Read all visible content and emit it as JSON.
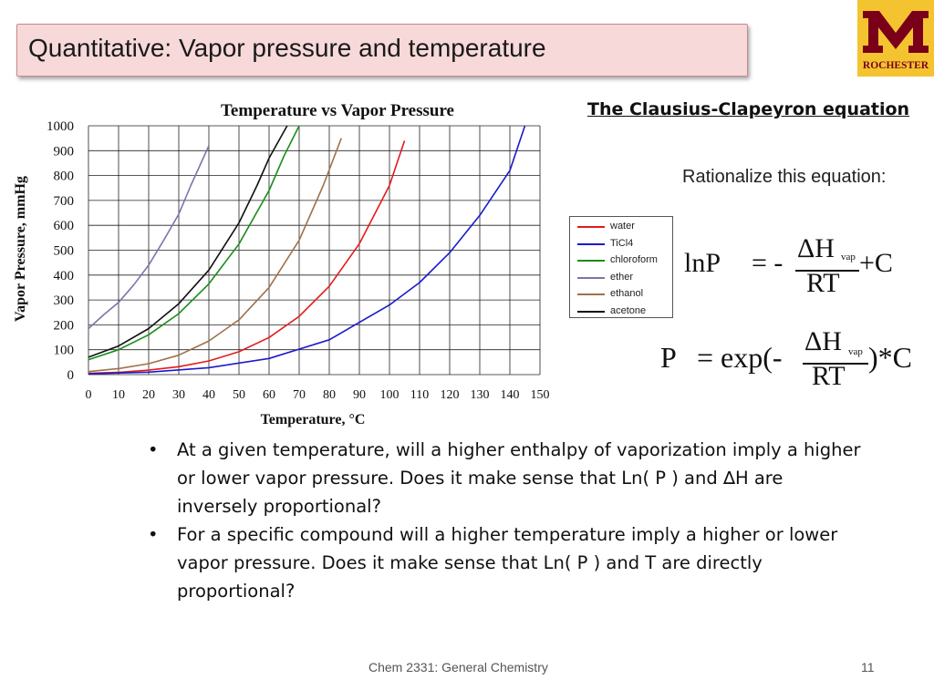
{
  "slide": {
    "title": "Quantitative: Vapor pressure and temperature",
    "logo_text": "ROCHESTER",
    "footer": "Chem 2331: General Chemistry",
    "page_number": "11"
  },
  "equation_panel": {
    "heading": "The Clausius-Clapeyron equation",
    "prompt": "Rationalize this equation:",
    "eq1": {
      "lhs": "lnP",
      "equals": "= -",
      "num": "ΔH",
      "sub": "vap",
      "den": "RT",
      "tail": "+C"
    },
    "eq2": {
      "lhs": "P",
      "equals": "= exp(-",
      "num": "ΔH",
      "sub": "vap",
      "den": "RT",
      "tail": ")*C"
    }
  },
  "bullets": [
    "At a given temperature, will a higher enthalpy of vaporization imply a higher or lower vapor pressure. Does it make sense that Ln( P ) and ∆H are inversely proportional?",
    "For a specific compound will a higher temperature imply a higher or lower vapor pressure. Does it make sense that Ln( P ) and T are directly proportional?"
  ],
  "chart_data": {
    "type": "line",
    "title": "Temperature vs Vapor Pressure",
    "xlabel": "Temperature, °C",
    "ylabel": "Vapor Pressure, mmHg",
    "xlim": [
      0,
      150
    ],
    "ylim": [
      0,
      1000
    ],
    "x_ticks": [
      0,
      10,
      20,
      30,
      40,
      50,
      60,
      70,
      80,
      90,
      100,
      110,
      120,
      130,
      140,
      150
    ],
    "y_ticks": [
      0,
      100,
      200,
      300,
      400,
      500,
      600,
      700,
      800,
      900,
      1000
    ],
    "grid": true,
    "legend_position": "right",
    "series": [
      {
        "name": "water",
        "color": "#e41a1c",
        "x": [
          0,
          10,
          20,
          30,
          40,
          50,
          60,
          70,
          80,
          90,
          100,
          105
        ],
        "y": [
          5,
          9,
          18,
          32,
          55,
          92,
          149,
          234,
          355,
          526,
          760,
          940
        ]
      },
      {
        "name": "TiCl4",
        "color": "#1a1acc",
        "x": [
          0,
          20,
          40,
          60,
          80,
          100,
          110,
          120,
          130,
          140,
          145
        ],
        "y": [
          3,
          10,
          28,
          65,
          140,
          280,
          370,
          490,
          640,
          820,
          1000
        ]
      },
      {
        "name": "chloroform",
        "color": "#1a8c1a",
        "x": [
          0,
          10,
          20,
          30,
          40,
          50,
          60,
          65,
          70
        ],
        "y": [
          60,
          100,
          160,
          245,
          365,
          525,
          740,
          880,
          1000
        ]
      },
      {
        "name": "ether",
        "color": "#7777aa",
        "x": [
          0,
          5,
          10,
          15,
          20,
          25,
          30,
          34,
          40
        ],
        "y": [
          185,
          240,
          290,
          360,
          440,
          540,
          645,
          760,
          920
        ]
      },
      {
        "name": "ethanol",
        "color": "#a0704a",
        "x": [
          0,
          10,
          20,
          30,
          40,
          50,
          60,
          70,
          78,
          84
        ],
        "y": [
          12,
          24,
          44,
          78,
          135,
          220,
          350,
          540,
          760,
          950
        ]
      },
      {
        "name": "acetone",
        "color": "#111111",
        "x": [
          0,
          10,
          20,
          30,
          40,
          50,
          56,
          60,
          66
        ],
        "y": [
          70,
          115,
          185,
          285,
          420,
          610,
          760,
          870,
          1000
        ]
      }
    ]
  }
}
